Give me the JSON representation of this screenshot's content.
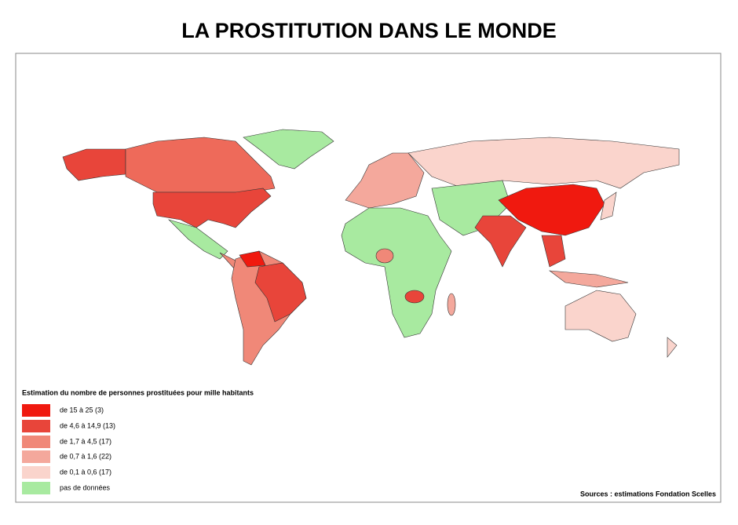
{
  "title": "LA PROSTITUTION DANS LE MONDE",
  "legend": {
    "title": "Estimation du nombre de personnes prostituées pour mille habitants",
    "items": [
      "de 15 à 25 (3)",
      "de 4,6 à 14,9 (13)",
      "de 1,7 à 4,5 (17)",
      "de 0,7 à 1,6 (22)",
      "de 0,1 à 0,6 (17)",
      "pas de données"
    ]
  },
  "source": "Sources : estimations Fondation Scelles"
}
